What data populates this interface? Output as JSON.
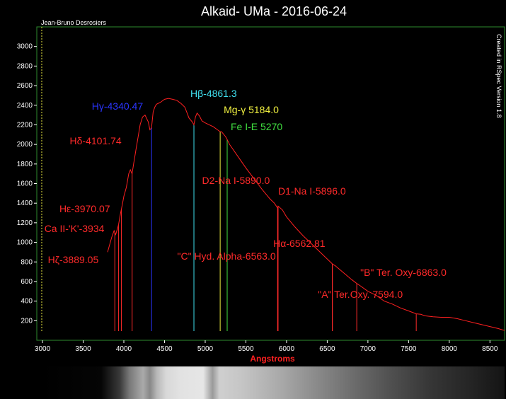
{
  "chart_data": {
    "type": "line",
    "title": "Alkaid- UMa - 2016-06-24",
    "author": "Jean-Bruno Desrosiers",
    "software_note": "Created in RSpec Version 1.8",
    "xlabel": "Angstroms",
    "ylabel": "",
    "xlim": [
      2930,
      8680
    ],
    "ylim": [
      0,
      3200
    ],
    "x_ticks": [
      3000,
      3500,
      4000,
      4500,
      5000,
      5500,
      6000,
      6500,
      7000,
      7500,
      8000,
      8500
    ],
    "y_ticks": [
      200,
      400,
      600,
      800,
      1000,
      1200,
      1400,
      1600,
      1800,
      2000,
      2200,
      2400,
      2600,
      2800,
      3000
    ],
    "grid": false,
    "background": "#000000",
    "plot_border_color": "#2e8b2e",
    "series": [
      {
        "color": "#ff2020",
        "x": [
          3800,
          3850,
          3880,
          3900,
          3935,
          3960,
          3980,
          4000,
          4030,
          4060,
          4080,
          4101,
          4120,
          4150,
          4180,
          4200,
          4230,
          4260,
          4300,
          4320,
          4340,
          4360,
          4380,
          4400,
          4450,
          4500,
          4550,
          4600,
          4650,
          4700,
          4750,
          4800,
          4840,
          4861,
          4880,
          4900,
          4930,
          4960,
          5000,
          5050,
          5100,
          5150,
          5184,
          5200,
          5250,
          5270,
          5300,
          5400,
          5500,
          5600,
          5700,
          5800,
          5850,
          5890,
          5896,
          5950,
          6000,
          6100,
          6200,
          6300,
          6400,
          6500,
          6563,
          6600,
          6700,
          6800,
          6863,
          6900,
          7000,
          7100,
          7200,
          7300,
          7400,
          7500,
          7594,
          7650,
          7700,
          7800,
          7900,
          8000,
          8100,
          8200,
          8300,
          8400,
          8500,
          8600,
          8680
        ],
        "values": [
          900,
          1050,
          1120,
          1080,
          1180,
          1300,
          1380,
          1470,
          1560,
          1700,
          1740,
          1700,
          1800,
          1950,
          2100,
          2200,
          2280,
          2300,
          2230,
          2150,
          2170,
          2330,
          2380,
          2410,
          2430,
          2460,
          2470,
          2460,
          2450,
          2420,
          2380,
          2270,
          2230,
          2200,
          2280,
          2320,
          2290,
          2240,
          2220,
          2200,
          2180,
          2150,
          2130,
          2130,
          2080,
          2050,
          2000,
          1880,
          1760,
          1650,
          1540,
          1440,
          1400,
          1350,
          1370,
          1330,
          1260,
          1160,
          1070,
          990,
          910,
          830,
          780,
          760,
          690,
          620,
          580,
          560,
          500,
          460,
          400,
          370,
          330,
          300,
          270,
          265,
          250,
          240,
          235,
          235,
          220,
          200,
          180,
          160,
          140,
          120,
          100
        ]
      }
    ],
    "annotations": [
      {
        "label": "Hζ-3889.05",
        "x": 3889.05,
        "color": "#ff2a2a"
      },
      {
        "label": "Ca II-'K'-3934",
        "x": 3934,
        "color": "#ff2a2a"
      },
      {
        "label": "Hε-3970.07",
        "x": 3970.07,
        "color": "#ff2a2a"
      },
      {
        "label": "Hδ-4101.74",
        "x": 4101.74,
        "color": "#ff2a2a"
      },
      {
        "label": "Hγ-4340.47",
        "x": 4340.47,
        "color": "#2a35ff"
      },
      {
        "label": "Hβ-4861.3",
        "x": 4861.3,
        "color": "#40e0f0"
      },
      {
        "label": "Mg-γ 5184.0",
        "x": 5184.0,
        "color": "#f0f040"
      },
      {
        "label": "Fe I-E 5270",
        "x": 5270,
        "color": "#40e040"
      },
      {
        "label": "D2-Na I-5890.0",
        "x": 5890.0,
        "color": "#ff2a2a"
      },
      {
        "label": "D1-Na I-5896.0",
        "x": 5896.0,
        "color": "#ff2a2a"
      },
      {
        "label": "Hα-6562.81",
        "x": 6562.81,
        "color": "#ff2a2a"
      },
      {
        "label": "\"C\" Hyd. Alpha-6563.0",
        "x": 6563.0,
        "color": "#ff2a2a"
      },
      {
        "label": "\"B\" Ter. Oxy-6863.0",
        "x": 6863.0,
        "color": "#ff2a2a"
      },
      {
        "label": "\"A\" Ter.Oxy. 7594.0",
        "x": 7594.0,
        "color": "#ff2a2a"
      }
    ]
  }
}
